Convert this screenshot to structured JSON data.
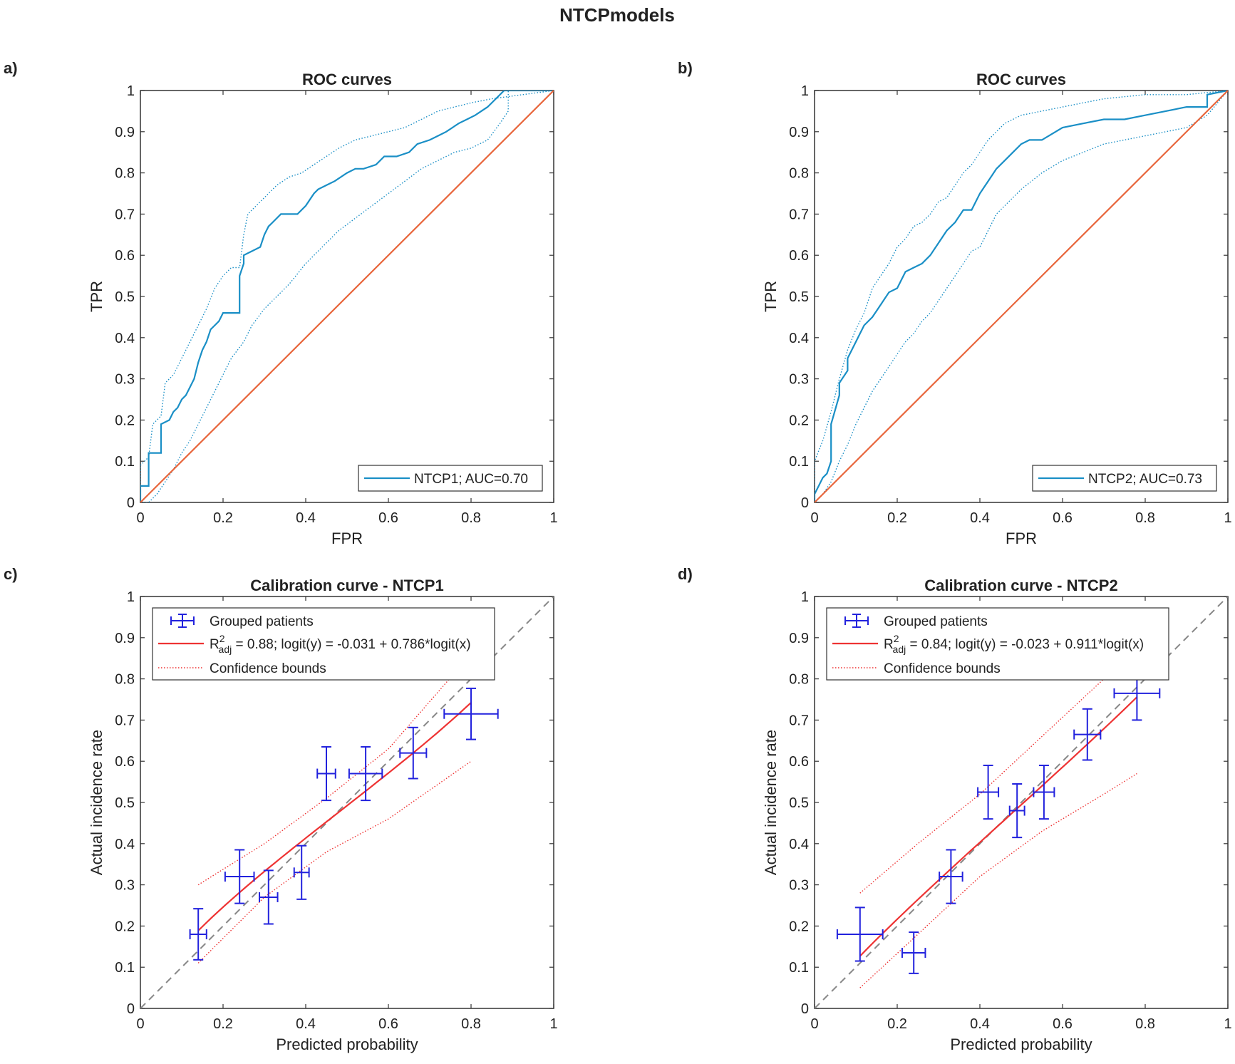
{
  "figure_title": "NTCPmodels",
  "chart_data": [
    {
      "panel": "a)",
      "type": "line",
      "title": "ROC curves",
      "xlabel": "FPR",
      "ylabel": "TPR",
      "xlim": [
        0,
        1
      ],
      "ylim": [
        0,
        1
      ],
      "xticks": [
        "0",
        "0.2",
        "0.4",
        "0.6",
        "0.8",
        "1"
      ],
      "yticks": [
        "0",
        "0.1",
        "0.2",
        "0.3",
        "0.4",
        "0.5",
        "0.6",
        "0.7",
        "0.8",
        "0.9",
        "1"
      ],
      "legend": [
        "NTCP1; AUC=0.70"
      ],
      "legend_position": "bottom-right",
      "series": [
        {
          "name": "NTCP1; AUC=0.70",
          "style": "solid",
          "color": "#1a8fc6",
          "x": [
            0,
            0,
            0.02,
            0.02,
            0.05,
            0.05,
            0.07,
            0.08,
            0.09,
            0.1,
            0.11,
            0.12,
            0.13,
            0.14,
            0.15,
            0.16,
            0.17,
            0.18,
            0.19,
            0.2,
            0.22,
            0.24,
            0.24,
            0.25,
            0.25,
            0.27,
            0.29,
            0.3,
            0.31,
            0.32,
            0.34,
            0.36,
            0.38,
            0.4,
            0.42,
            0.43,
            0.45,
            0.47,
            0.5,
            0.52,
            0.54,
            0.57,
            0.59,
            0.62,
            0.65,
            0.67,
            0.7,
            0.72,
            0.74,
            0.77,
            0.79,
            0.81,
            0.84,
            0.86,
            0.88,
            1
          ],
          "y": [
            0,
            0.04,
            0.04,
            0.12,
            0.12,
            0.19,
            0.2,
            0.22,
            0.23,
            0.25,
            0.26,
            0.28,
            0.3,
            0.34,
            0.37,
            0.39,
            0.42,
            0.43,
            0.44,
            0.46,
            0.46,
            0.46,
            0.55,
            0.58,
            0.6,
            0.61,
            0.62,
            0.65,
            0.67,
            0.68,
            0.7,
            0.7,
            0.7,
            0.72,
            0.75,
            0.76,
            0.77,
            0.78,
            0.8,
            0.81,
            0.81,
            0.82,
            0.84,
            0.84,
            0.85,
            0.87,
            0.88,
            0.89,
            0.9,
            0.92,
            0.93,
            0.94,
            0.96,
            0.98,
            1,
            1
          ]
        },
        {
          "name": "upper bound",
          "style": "dotted",
          "color": "#1a8fc6",
          "x": [
            0,
            0,
            0.02,
            0.03,
            0.05,
            0.06,
            0.08,
            0.1,
            0.12,
            0.14,
            0.16,
            0.18,
            0.2,
            0.22,
            0.24,
            0.25,
            0.26,
            0.28,
            0.3,
            0.33,
            0.36,
            0.39,
            0.42,
            0.45,
            0.48,
            0.52,
            0.56,
            0.6,
            0.64,
            0.68,
            0.72,
            0.76,
            0.8,
            0.85,
            1
          ],
          "y": [
            0,
            0.09,
            0.11,
            0.19,
            0.21,
            0.29,
            0.31,
            0.35,
            0.39,
            0.43,
            0.47,
            0.52,
            0.55,
            0.57,
            0.57,
            0.65,
            0.7,
            0.72,
            0.74,
            0.77,
            0.79,
            0.8,
            0.82,
            0.84,
            0.86,
            0.88,
            0.89,
            0.9,
            0.91,
            0.93,
            0.95,
            0.96,
            0.97,
            0.98,
            1
          ]
        },
        {
          "name": "lower bound",
          "style": "dotted",
          "color": "#1a8fc6",
          "x": [
            0,
            0.02,
            0.04,
            0.06,
            0.08,
            0.1,
            0.12,
            0.14,
            0.16,
            0.18,
            0.2,
            0.22,
            0.25,
            0.27,
            0.3,
            0.33,
            0.36,
            0.4,
            0.44,
            0.48,
            0.52,
            0.56,
            0.6,
            0.64,
            0.68,
            0.72,
            0.76,
            0.8,
            0.84,
            0.87,
            0.89,
            0.89,
            1
          ],
          "y": [
            0,
            0,
            0.02,
            0.05,
            0.08,
            0.12,
            0.15,
            0.19,
            0.23,
            0.27,
            0.31,
            0.35,
            0.39,
            0.43,
            0.47,
            0.5,
            0.53,
            0.58,
            0.62,
            0.66,
            0.69,
            0.72,
            0.75,
            0.78,
            0.81,
            0.83,
            0.85,
            0.86,
            0.88,
            0.92,
            0.95,
            1,
            1
          ]
        },
        {
          "name": "reference",
          "style": "solid",
          "color": "#e8663c",
          "x": [
            0,
            1
          ],
          "y": [
            0,
            1
          ]
        }
      ]
    },
    {
      "panel": "b)",
      "type": "line",
      "title": "ROC curves",
      "xlabel": "FPR",
      "ylabel": "TPR",
      "xlim": [
        0,
        1
      ],
      "ylim": [
        0,
        1
      ],
      "xticks": [
        "0",
        "0.2",
        "0.4",
        "0.6",
        "0.8",
        "1"
      ],
      "yticks": [
        "0",
        "0.1",
        "0.2",
        "0.3",
        "0.4",
        "0.5",
        "0.6",
        "0.7",
        "0.8",
        "0.9",
        "1"
      ],
      "legend": [
        "NTCP2; AUC=0.73"
      ],
      "legend_position": "bottom-right",
      "series": [
        {
          "name": "NTCP2; AUC=0.73",
          "style": "solid",
          "color": "#1a8fc6",
          "x": [
            0,
            0,
            0.01,
            0.02,
            0.03,
            0.04,
            0.04,
            0.06,
            0.06,
            0.08,
            0.08,
            0.1,
            0.11,
            0.12,
            0.14,
            0.16,
            0.18,
            0.2,
            0.22,
            0.24,
            0.26,
            0.28,
            0.3,
            0.32,
            0.34,
            0.36,
            0.38,
            0.4,
            0.42,
            0.44,
            0.46,
            0.48,
            0.5,
            0.52,
            0.55,
            0.6,
            0.65,
            0.7,
            0.75,
            0.8,
            0.85,
            0.9,
            0.9,
            0.95,
            0.95,
            1
          ],
          "y": [
            0,
            0.02,
            0.04,
            0.06,
            0.07,
            0.1,
            0.19,
            0.26,
            0.29,
            0.32,
            0.35,
            0.39,
            0.41,
            0.43,
            0.45,
            0.48,
            0.51,
            0.52,
            0.56,
            0.57,
            0.58,
            0.6,
            0.63,
            0.66,
            0.68,
            0.71,
            0.71,
            0.75,
            0.78,
            0.81,
            0.83,
            0.85,
            0.87,
            0.88,
            0.88,
            0.91,
            0.92,
            0.93,
            0.93,
            0.94,
            0.95,
            0.96,
            0.96,
            0.96,
            0.99,
            1
          ]
        },
        {
          "name": "upper bound",
          "style": "dotted",
          "color": "#1a8fc6",
          "x": [
            0,
            0,
            0.02,
            0.04,
            0.06,
            0.08,
            0.1,
            0.12,
            0.14,
            0.16,
            0.18,
            0.2,
            0.22,
            0.24,
            0.26,
            0.28,
            0.3,
            0.32,
            0.34,
            0.36,
            0.38,
            0.4,
            0.42,
            0.44,
            0.46,
            0.48,
            0.5,
            0.55,
            0.6,
            0.65,
            0.7,
            0.8,
            0.9,
            1
          ],
          "y": [
            0,
            0.1,
            0.15,
            0.22,
            0.3,
            0.37,
            0.42,
            0.46,
            0.52,
            0.55,
            0.58,
            0.62,
            0.64,
            0.67,
            0.68,
            0.7,
            0.73,
            0.74,
            0.77,
            0.8,
            0.82,
            0.85,
            0.88,
            0.9,
            0.92,
            0.93,
            0.94,
            0.95,
            0.96,
            0.97,
            0.98,
            0.99,
            0.99,
            1
          ]
        },
        {
          "name": "lower bound",
          "style": "dotted",
          "color": "#1a8fc6",
          "x": [
            0,
            0.02,
            0.04,
            0.06,
            0.08,
            0.1,
            0.12,
            0.14,
            0.16,
            0.18,
            0.2,
            0.22,
            0.24,
            0.26,
            0.28,
            0.3,
            0.32,
            0.34,
            0.36,
            0.38,
            0.4,
            0.42,
            0.44,
            0.46,
            0.48,
            0.5,
            0.55,
            0.6,
            0.65,
            0.7,
            0.8,
            0.9,
            0.95,
            1
          ],
          "y": [
            0,
            0.02,
            0.05,
            0.1,
            0.14,
            0.19,
            0.23,
            0.27,
            0.3,
            0.33,
            0.36,
            0.39,
            0.41,
            0.44,
            0.46,
            0.49,
            0.52,
            0.55,
            0.58,
            0.61,
            0.62,
            0.66,
            0.7,
            0.72,
            0.74,
            0.76,
            0.8,
            0.83,
            0.85,
            0.87,
            0.89,
            0.91,
            0.94,
            1
          ]
        },
        {
          "name": "reference",
          "style": "solid",
          "color": "#e8663c",
          "x": [
            0,
            1
          ],
          "y": [
            0,
            1
          ]
        }
      ]
    },
    {
      "panel": "c)",
      "type": "scatter",
      "title": "Calibration curve - NTCP1",
      "xlabel": "Predicted probability",
      "ylabel": "Actual incidence rate",
      "xlim": [
        0,
        1
      ],
      "ylim": [
        0,
        1
      ],
      "xticks": [
        "0",
        "0.2",
        "0.4",
        "0.6",
        "0.8",
        "1"
      ],
      "yticks": [
        "0",
        "0.1",
        "0.2",
        "0.3",
        "0.4",
        "0.5",
        "0.6",
        "0.7",
        "0.8",
        "0.9",
        "1"
      ],
      "legend_position": "top",
      "legend": {
        "grouped": "Grouped patients",
        "fit_prefix": "R",
        "fit_sup": "2",
        "fit_sub": "adj",
        "fit_text": " = 0.88; logit(y) = -0.031 + 0.786*logit(x)",
        "bounds": "Confidence bounds"
      },
      "fit": {
        "intercept": -0.031,
        "slope": 0.786,
        "x_range": [
          0.14,
          0.8
        ],
        "color": "#ee3333"
      },
      "bounds": {
        "upper": {
          "x": [
            0.14,
            0.3,
            0.45,
            0.6,
            0.8
          ],
          "y": [
            0.3,
            0.4,
            0.51,
            0.63,
            0.86
          ]
        },
        "lower": {
          "x": [
            0.14,
            0.3,
            0.45,
            0.6,
            0.8
          ],
          "y": [
            0.11,
            0.27,
            0.38,
            0.46,
            0.6
          ]
        }
      },
      "points": [
        {
          "x": 0.14,
          "y": 0.18,
          "xerr": 0.02,
          "yerr": 0.062
        },
        {
          "x": 0.24,
          "y": 0.32,
          "xerr": 0.035,
          "yerr": 0.065
        },
        {
          "x": 0.31,
          "y": 0.27,
          "xerr": 0.022,
          "yerr": 0.065
        },
        {
          "x": 0.39,
          "y": 0.33,
          "xerr": 0.018,
          "yerr": 0.065
        },
        {
          "x": 0.45,
          "y": 0.57,
          "xerr": 0.022,
          "yerr": 0.065
        },
        {
          "x": 0.545,
          "y": 0.57,
          "xerr": 0.04,
          "yerr": 0.065
        },
        {
          "x": 0.66,
          "y": 0.62,
          "xerr": 0.032,
          "yerr": 0.062
        },
        {
          "x": 0.8,
          "y": 0.715,
          "xerr": 0.065,
          "yerr": 0.062
        }
      ]
    },
    {
      "panel": "d)",
      "type": "scatter",
      "title": "Calibration curve - NTCP2",
      "xlabel": "Predicted probability",
      "ylabel": "Actual incidence rate",
      "xlim": [
        0,
        1
      ],
      "ylim": [
        0,
        1
      ],
      "xticks": [
        "0",
        "0.2",
        "0.4",
        "0.6",
        "0.8",
        "1"
      ],
      "yticks": [
        "0",
        "0.1",
        "0.2",
        "0.3",
        "0.4",
        "0.5",
        "0.6",
        "0.7",
        "0.8",
        "0.9",
        "1"
      ],
      "legend_position": "top",
      "legend": {
        "grouped": "Grouped patients",
        "fit_prefix": "R",
        "fit_sup": "2",
        "fit_sub": "adj",
        "fit_text": " = 0.84; logit(y) = -0.023 + 0.911*logit(x)",
        "bounds": "Confidence bounds"
      },
      "fit": {
        "intercept": -0.023,
        "slope": 0.911,
        "x_range": [
          0.11,
          0.78
        ],
        "color": "#ee3333"
      },
      "bounds": {
        "upper": {
          "x": [
            0.11,
            0.25,
            0.4,
            0.55,
            0.7,
            0.78
          ],
          "y": [
            0.28,
            0.4,
            0.52,
            0.66,
            0.8,
            0.88
          ]
        },
        "lower": {
          "x": [
            0.11,
            0.25,
            0.4,
            0.55,
            0.7,
            0.78
          ],
          "y": [
            0.05,
            0.18,
            0.32,
            0.43,
            0.52,
            0.57
          ]
        }
      },
      "points": [
        {
          "x": 0.11,
          "y": 0.18,
          "xerr": 0.055,
          "yerr": 0.065
        },
        {
          "x": 0.24,
          "y": 0.135,
          "xerr": 0.028,
          "yerr": 0.05
        },
        {
          "x": 0.33,
          "y": 0.32,
          "xerr": 0.028,
          "yerr": 0.065
        },
        {
          "x": 0.42,
          "y": 0.525,
          "xerr": 0.025,
          "yerr": 0.065
        },
        {
          "x": 0.49,
          "y": 0.48,
          "xerr": 0.018,
          "yerr": 0.065
        },
        {
          "x": 0.555,
          "y": 0.525,
          "xerr": 0.025,
          "yerr": 0.065
        },
        {
          "x": 0.66,
          "y": 0.665,
          "xerr": 0.032,
          "yerr": 0.062
        },
        {
          "x": 0.78,
          "y": 0.765,
          "xerr": 0.055,
          "yerr": 0.065
        }
      ]
    }
  ]
}
